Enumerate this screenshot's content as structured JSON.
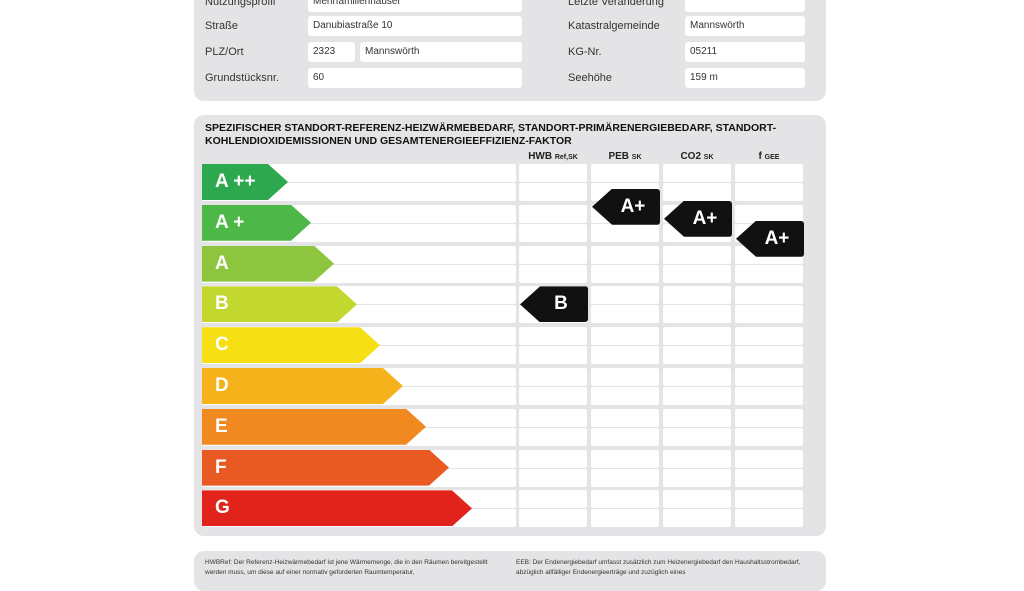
{
  "building": {
    "rows": [
      {
        "label": "Nutzungsprofil",
        "value": "Mehrfamilienhäuser",
        "label2": "Letzte Veränderung",
        "value2": ""
      },
      {
        "label": "Straße",
        "value": "Danubiastraße 10",
        "label2": "Katastralgemeinde",
        "value2": "Mannswörth"
      },
      {
        "label": "PLZ/Ort",
        "plz": "2323",
        "value": "Mannswörth",
        "label2": "KG-Nr.",
        "value2": "05211"
      },
      {
        "label": "Grundstücksnr.",
        "value": "60",
        "label2": "Seehöhe",
        "value2": "159 m"
      }
    ]
  },
  "scale": {
    "title": "SPEZIFISCHER STANDORT-REFERENZ-HEIZWÄRMEBEDARF, STANDORT-PRIMÄRENERGIEBEDARF, STANDORT-KOHLENDIOXIDEMISSIONEN UND GESAMTENERGIEEFFIZIENZ-FAKTOR",
    "columns": [
      {
        "main": "HWB",
        "sub": "Ref,SK"
      },
      {
        "main": "PEB",
        "sub": "SK"
      },
      {
        "main": "CO2",
        "sub": "SK"
      },
      {
        "main": "f",
        "sub": "GEE"
      }
    ],
    "classes": [
      {
        "label": "A ++",
        "color": "#2ea84e"
      },
      {
        "label": "A +",
        "color": "#4db748"
      },
      {
        "label": "A",
        "color": "#8dc53f"
      },
      {
        "label": "B",
        "color": "#c3d82f"
      },
      {
        "label": "C",
        "color": "#f6df12"
      },
      {
        "label": "D",
        "color": "#f5b21b"
      },
      {
        "label": "E",
        "color": "#f0891f"
      },
      {
        "label": "F",
        "color": "#e95a22"
      },
      {
        "label": "G",
        "color": "#e1231b"
      }
    ],
    "ratings": {
      "HWB": "B",
      "PEB": "A+",
      "CO2": "A+",
      "fGEE": "A+"
    }
  },
  "notes": {
    "left": "HWBRef: Der Referenz-Heizwärmebedarf ist jene Wärmemenge, die in den Räumen bereitgestellt werden muss, um diese auf einer normativ geforderten Raumtemperatur,",
    "right": "EEB: Der Endenergiebedarf umfasst zusätzlich zum Heizenergiebedarf den Haushaltsstrombedarf, abzüglich allfälliger Endenergieerträge und zuzüglich eines"
  }
}
